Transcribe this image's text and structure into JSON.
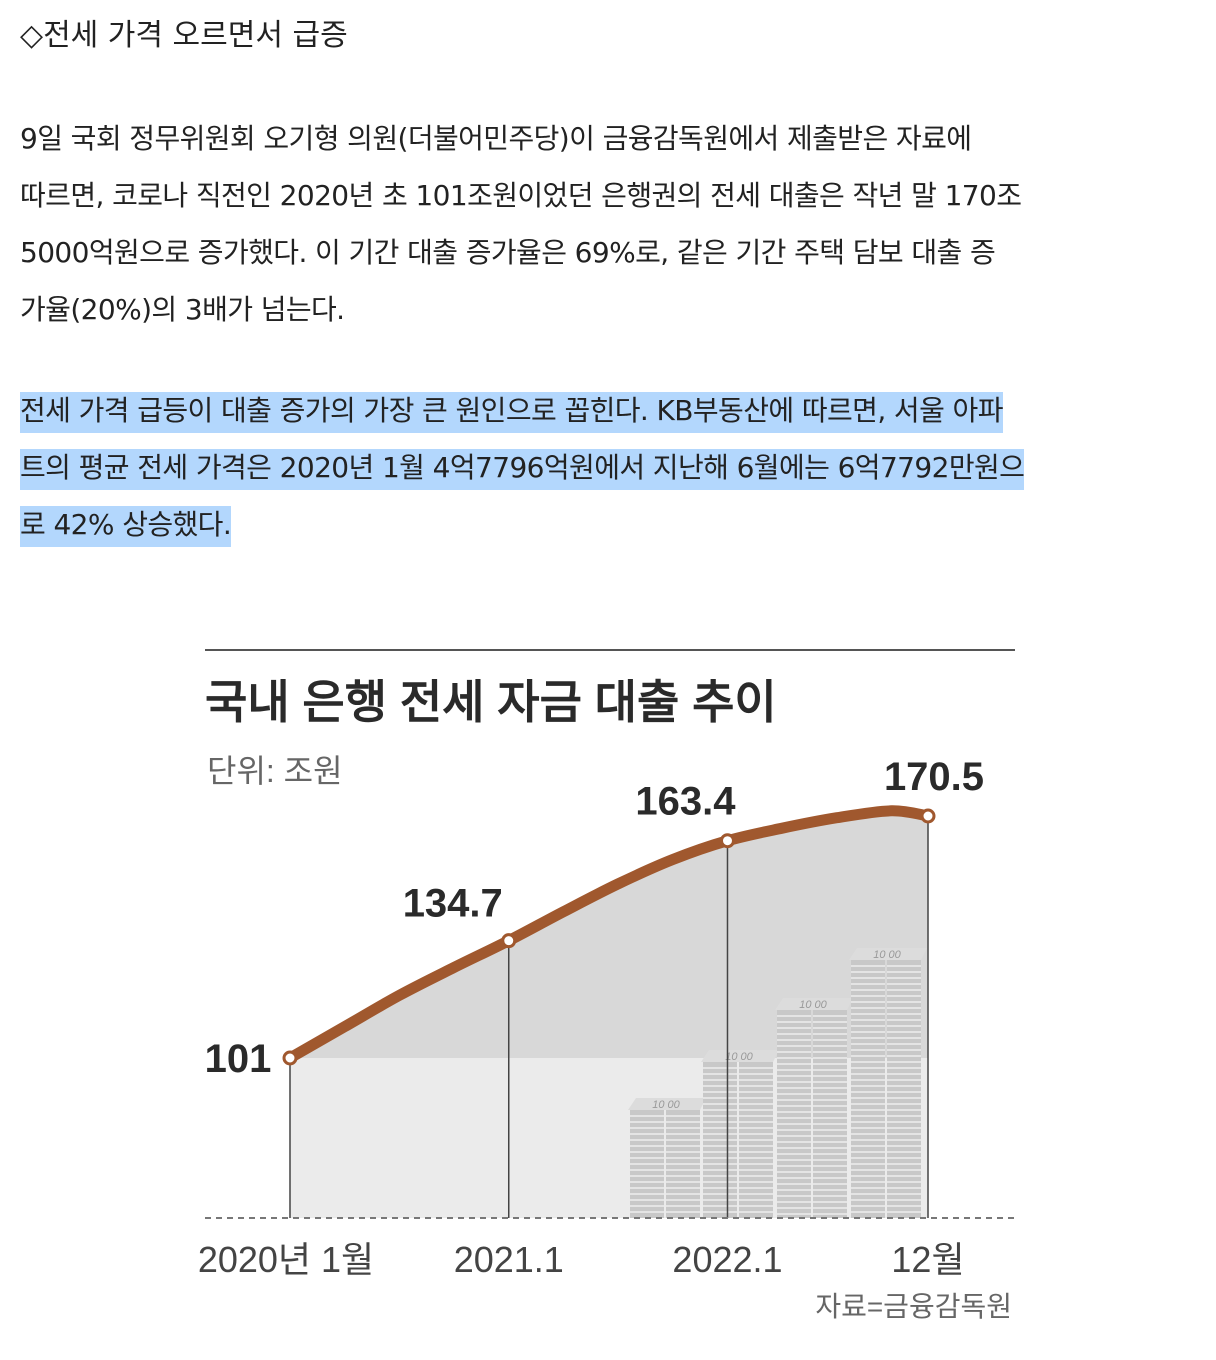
{
  "article": {
    "heading": "◇전세 가격 오르면서 급증",
    "p1_lines": [
      "9일 국회 정무위원회 오기형 의원(더불어민주당)이 금융감독원에서 제출받은 자료에",
      "따르면, 코로나 직전인 2020년 초 101조원이었던 은행권의 전세 대출은 작년 말 170조",
      "5000억원으로 증가했다. 이 기간 대출 증가율은 69%로, 같은 기간 주택 담보 대출 증",
      "가율(20%)의 3배가 넘는다."
    ],
    "p2_lines": [
      "전세 가격 급등이 대출 증가의 가장 큰 원인으로 꼽힌다. KB부동산에 따르면, 서울 아파",
      "트의 평균 전세 가격은 2020년 1월 4억7796억원에서 지난해 6월에는 6억7792만원으",
      "로 42% 상승했다."
    ],
    "highlight_color": "#b3d7fd"
  },
  "chart_data": {
    "type": "area",
    "title": "국내 은행 전세 자금 대출 추이",
    "unit_label": "단위: 조원",
    "source": "자료=금융감독원",
    "x_ticks": [
      "2020년 1월",
      "2021.1",
      "2022.1",
      "12월"
    ],
    "labeled_points": [
      {
        "x": "2020년 1월",
        "t": 0,
        "value": 101,
        "label": "101"
      },
      {
        "x": "2021.1",
        "t": 12,
        "value": 134.7,
        "label": "134.7"
      },
      {
        "x": "2022.1",
        "t": 24,
        "value": 163.4,
        "label": "163.4"
      },
      {
        "x": "12월",
        "t": 35,
        "value": 170.5,
        "label": "170.5"
      }
    ],
    "series": [
      {
        "t": [
          0,
          3,
          6,
          9,
          12,
          15,
          18,
          21,
          24,
          27,
          30,
          33,
          35
        ],
        "values": [
          101,
          110,
          119,
          127,
          134.7,
          143,
          151,
          158,
          163.4,
          167,
          170,
          172,
          170.5
        ]
      }
    ],
    "coin_stack_labels": [
      "10 00",
      "10 00",
      "10 00",
      "10 00"
    ],
    "ylim": [
      60,
      175
    ],
    "colors": {
      "line": "#a0582e",
      "area": "#d8d8d8",
      "baseline_area": "#ebebeb",
      "coin": "#c8c8c8"
    }
  }
}
